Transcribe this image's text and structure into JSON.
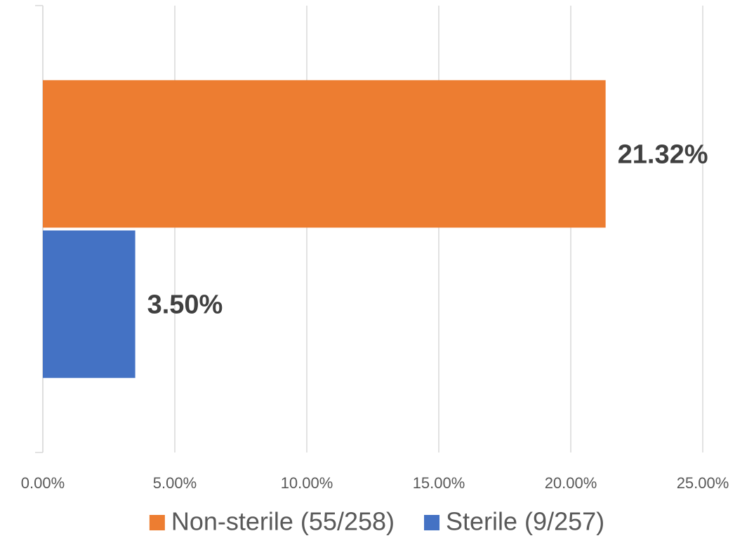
{
  "chart_data": {
    "type": "bar",
    "orientation": "horizontal",
    "categories": [
      null
    ],
    "series": [
      {
        "name": "Non-sterile (55/258)",
        "color": "#ed7d31",
        "values": [
          21.32
        ],
        "value_labels": [
          "21.32%"
        ]
      },
      {
        "name": "Sterile (9/257)",
        "color": "#4472c4",
        "values": [
          3.5
        ],
        "value_labels": [
          "3.50%"
        ]
      }
    ],
    "xlim": [
      0,
      25
    ],
    "xticks": [
      {
        "value": 0,
        "label": "0.00%"
      },
      {
        "value": 5,
        "label": "5.00%"
      },
      {
        "value": 10,
        "label": "10.00%"
      },
      {
        "value": 15,
        "label": "15.00%"
      },
      {
        "value": 20,
        "label": "20.00%"
      },
      {
        "value": 25,
        "label": "25.00%"
      }
    ],
    "grid": true,
    "legend": "bottom"
  }
}
